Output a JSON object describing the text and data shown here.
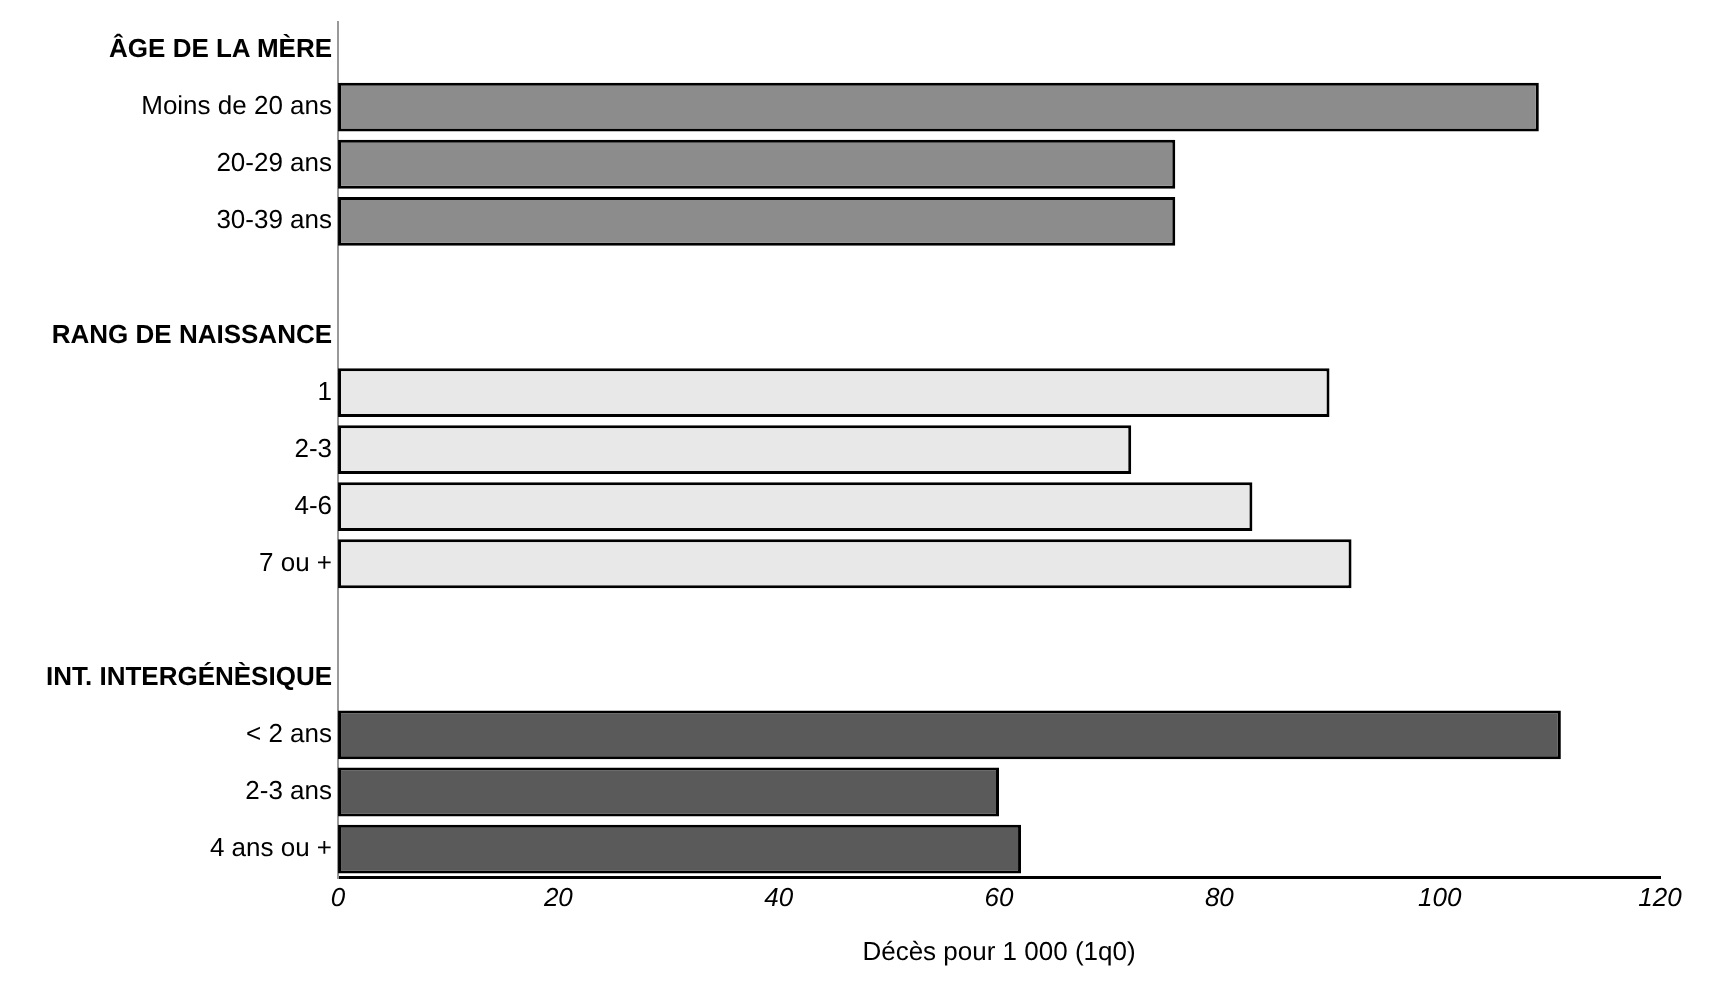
{
  "chart_data": {
    "type": "bar",
    "orientation": "horizontal",
    "xlabel": "Décès pour 1 000 (1q0)",
    "categories": [
      "ÂGE DE LA MÈRE",
      "Moins de 20 ans",
      "20-29 ans",
      "30-39 ans",
      null,
      "RANG DE NAISSANCE",
      "1",
      "2-3",
      "4-6",
      "7 ou +",
      null,
      "INT. INTERGÉNÈSIQUE",
      "< 2 ans",
      "2-3 ans",
      "4 ans ou +"
    ],
    "values": [
      null,
      109,
      76,
      76,
      null,
      null,
      90,
      72,
      83,
      92,
      null,
      null,
      111,
      60,
      62
    ],
    "colors": [
      null,
      "#8c8c8c",
      "#8c8c8c",
      "#8c8c8c",
      null,
      null,
      "#e8e8e8",
      "#e8e8e8",
      "#e8e8e8",
      "#e8e8e8",
      null,
      null,
      "#5a5a5a",
      "#5a5a5a",
      "#5a5a5a"
    ],
    "xlim": [
      0,
      120
    ],
    "xticks": [
      0,
      20,
      40,
      60,
      80,
      100,
      120
    ],
    "grid": false,
    "legend": false
  }
}
